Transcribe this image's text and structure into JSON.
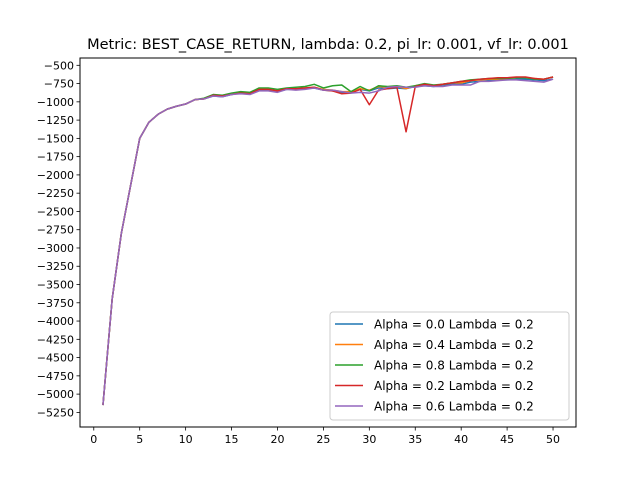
{
  "chart_data": {
    "type": "line",
    "title": "Metric: BEST_CASE_RETURN, lambda: 0.2, pi_lr: 0.001, vf_lr: 0.001",
    "xlabel": "",
    "ylabel": "",
    "xlim": [
      -1.5,
      52.5
    ],
    "ylim": [
      -5450,
      -400
    ],
    "xticks": [
      0,
      5,
      10,
      15,
      20,
      25,
      30,
      35,
      40,
      45,
      50
    ],
    "yticks": [
      -500,
      -750,
      -1000,
      -1250,
      -1500,
      -1750,
      -2000,
      -2250,
      -2500,
      -2750,
      -3000,
      -3250,
      -3500,
      -3750,
      -4000,
      -4250,
      -4500,
      -4750,
      -5000,
      -5250
    ],
    "grid": false,
    "legend_position": "lower-right",
    "x": [
      1,
      2,
      3,
      4,
      5,
      6,
      7,
      8,
      9,
      10,
      11,
      12,
      13,
      14,
      15,
      16,
      17,
      18,
      19,
      20,
      21,
      22,
      23,
      24,
      25,
      26,
      27,
      28,
      29,
      30,
      31,
      32,
      33,
      34,
      35,
      36,
      37,
      38,
      39,
      40,
      41,
      42,
      43,
      44,
      45,
      46,
      47,
      48,
      49,
      50
    ],
    "series": [
      {
        "name": "Alpha = 0.0  Lambda = 0.2",
        "color": "#1f77b4",
        "values": [
          -5150,
          -3700,
          -2800,
          -2150,
          -1500,
          -1280,
          -1170,
          -1100,
          -1060,
          -1030,
          -970,
          -960,
          -920,
          -930,
          -900,
          -880,
          -890,
          -840,
          -840,
          -860,
          -830,
          -830,
          -820,
          -810,
          -840,
          -850,
          -870,
          -870,
          -830,
          -850,
          -810,
          -820,
          -810,
          -820,
          -790,
          -780,
          -790,
          -770,
          -760,
          -760,
          -730,
          -720,
          -710,
          -700,
          -700,
          -690,
          -690,
          -700,
          -710,
          -690
        ]
      },
      {
        "name": "Alpha = 0.4  Lambda = 0.2",
        "color": "#ff7f0e",
        "values": [
          -5150,
          -3700,
          -2800,
          -2150,
          -1500,
          -1280,
          -1170,
          -1100,
          -1060,
          -1030,
          -970,
          -960,
          -910,
          -920,
          -890,
          -870,
          -880,
          -830,
          -830,
          -850,
          -820,
          -820,
          -810,
          -800,
          -830,
          -840,
          -860,
          -860,
          -820,
          -840,
          -790,
          -800,
          -790,
          -820,
          -780,
          -760,
          -780,
          -760,
          -740,
          -740,
          -710,
          -700,
          -690,
          -690,
          -680,
          -670,
          -670,
          -680,
          -690,
          -660
        ]
      },
      {
        "name": "Alpha = 0.8  Lambda = 0.2",
        "color": "#2ca02c",
        "values": [
          -5150,
          -3700,
          -2800,
          -2150,
          -1500,
          -1280,
          -1170,
          -1100,
          -1060,
          -1030,
          -970,
          -950,
          -900,
          -910,
          -880,
          -860,
          -870,
          -810,
          -810,
          -830,
          -810,
          -800,
          -790,
          -760,
          -810,
          -780,
          -770,
          -860,
          -790,
          -850,
          -780,
          -790,
          -780,
          -800,
          -780,
          -750,
          -770,
          -760,
          -740,
          -720,
          -700,
          -690,
          -680,
          -680,
          -680,
          -670,
          -670,
          -690,
          -690,
          -660
        ]
      },
      {
        "name": "Alpha = 0.2  Lambda = 0.2",
        "color": "#d62728",
        "values": [
          -5150,
          -3700,
          -2800,
          -2150,
          -1500,
          -1280,
          -1170,
          -1100,
          -1060,
          -1030,
          -970,
          -960,
          -910,
          -920,
          -900,
          -880,
          -890,
          -830,
          -830,
          -850,
          -820,
          -820,
          -810,
          -800,
          -840,
          -850,
          -890,
          -880,
          -830,
          -1040,
          -840,
          -820,
          -800,
          -1410,
          -790,
          -760,
          -780,
          -760,
          -740,
          -720,
          -710,
          -690,
          -680,
          -670,
          -670,
          -660,
          -660,
          -680,
          -690,
          -660
        ]
      },
      {
        "name": "Alpha = 0.6  Lambda = 0.2",
        "color": "#9467bd",
        "values": [
          -5150,
          -3700,
          -2800,
          -2150,
          -1500,
          -1280,
          -1170,
          -1100,
          -1060,
          -1030,
          -970,
          -960,
          -920,
          -930,
          -900,
          -890,
          -900,
          -850,
          -850,
          -870,
          -830,
          -840,
          -830,
          -810,
          -840,
          -840,
          -860,
          -880,
          -870,
          -880,
          -850,
          -800,
          -790,
          -800,
          -800,
          -780,
          -790,
          -790,
          -770,
          -770,
          -770,
          -720,
          -720,
          -710,
          -700,
          -700,
          -710,
          -720,
          -730,
          -690
        ]
      }
    ]
  }
}
